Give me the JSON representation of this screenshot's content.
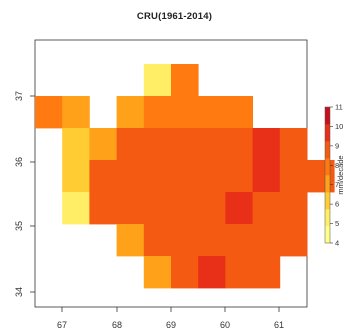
{
  "title": "CRU(1961-2014)",
  "chart_data": {
    "type": "heatmap",
    "title": "CRU(1961-2014)",
    "xlabel": "",
    "ylabel": "",
    "x_ticks": [
      "67",
      "68",
      "69",
      "60",
      "61"
    ],
    "y_ticks": [
      "37",
      "36",
      "35",
      "34"
    ],
    "color_scale": {
      "label": "mm/decade",
      "min": 4,
      "max": 11,
      "ticks": [
        "4",
        "5",
        "6",
        "7",
        "8",
        "9",
        "10",
        "11"
      ],
      "colors": [
        "#ffff8c",
        "#ffee66",
        "#ffcc33",
        "#ffa21a",
        "#ff7a10",
        "#f55a12",
        "#e83018",
        "#c8101c"
      ]
    },
    "cell_values": [
      [
        null,
        null,
        null,
        null,
        5,
        8,
        null,
        null,
        null,
        null,
        null
      ],
      [
        8,
        7,
        null,
        7,
        8,
        8,
        8,
        8,
        null,
        null,
        null
      ],
      [
        null,
        6,
        7,
        9,
        9,
        9,
        9,
        9,
        10,
        9,
        null
      ],
      [
        null,
        6,
        9,
        9,
        9,
        9,
        9,
        9,
        10,
        9,
        9
      ],
      [
        null,
        5,
        9,
        9,
        9,
        9,
        9,
        10,
        9,
        9,
        null
      ],
      [
        null,
        null,
        null,
        7,
        9,
        9,
        9,
        9,
        9,
        9,
        null
      ],
      [
        null,
        null,
        null,
        null,
        7,
        9,
        10,
        9,
        9,
        null,
        null
      ]
    ]
  }
}
